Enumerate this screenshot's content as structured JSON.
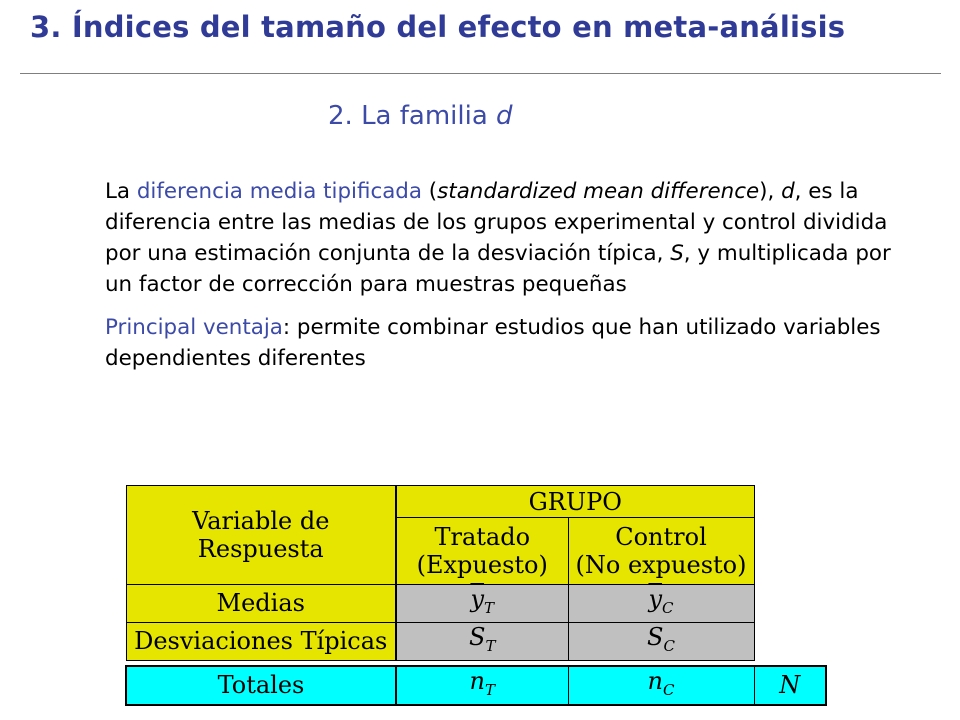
{
  "slide": {
    "title": "3. Índices del tamaño del efecto en meta-análisis",
    "subtitle_prefix": "2. La familia ",
    "subtitle_var": "d"
  },
  "para1": {
    "prefix": "La ",
    "term": "diferencia media tipificada",
    "open_paren": " (",
    "english": "standardized mean difference",
    "after_english": "), ",
    "var_d": "d",
    "middle": ", es la diferencia entre las medias de los grupos experimental y control dividida por una estimación conjunta de la desviación típica, ",
    "var_s": "S",
    "suffix": ", y multiplicada por un factor de corrección para muestras pequeñas"
  },
  "para2": {
    "term": "Principal ventaja",
    "text": ": permite combinar estudios que han utilizado variables dependientes diferentes"
  },
  "table": {
    "group_header": "GRUPO",
    "row_header": [
      "Variable de",
      "Respuesta"
    ],
    "col_treated": [
      "Tratado",
      "(Expuesto)"
    ],
    "col_control": [
      "Control",
      "(No expuesto)"
    ],
    "rows": {
      "means_label": "Medias",
      "sd_label": "Desviaciones Típicas",
      "totals_label": "Totales"
    },
    "symbols": {
      "y": "y",
      "S": "S",
      "n": "n",
      "N": "N",
      "sub_T": "T",
      "sub_C": "C"
    },
    "colors": {
      "header_yellow": "#e5e500",
      "value_gray": "#c0c0c0",
      "totals_cyan": "#00ffff"
    }
  }
}
